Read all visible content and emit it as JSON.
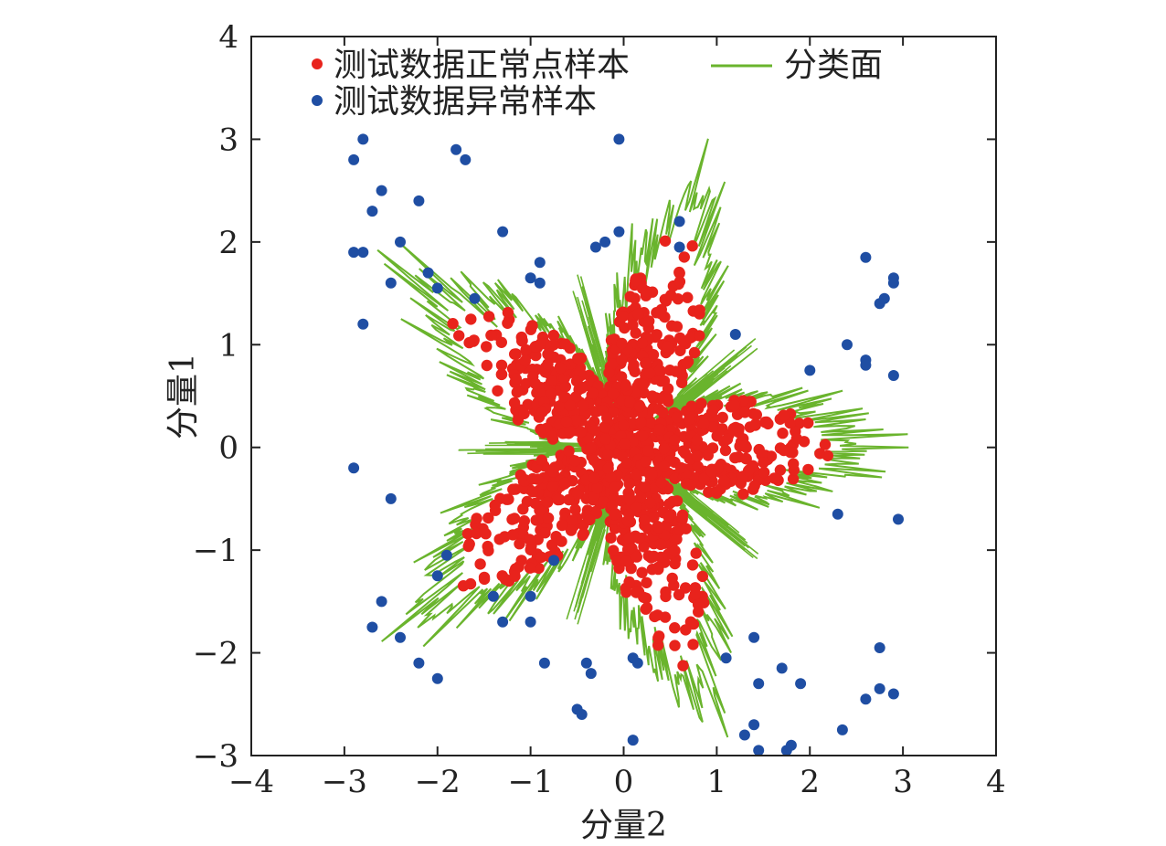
{
  "chart_data": {
    "type": "scatter",
    "xlabel": "分量2",
    "ylabel": "分量1",
    "xlim": [
      -4,
      4
    ],
    "ylim": [
      -3,
      4
    ],
    "x_ticks": [
      "−4",
      "−3",
      "−2",
      "−1",
      "0",
      "1",
      "2",
      "3",
      "4"
    ],
    "y_ticks": [
      "−3",
      "−2",
      "−1",
      "0",
      "1",
      "2",
      "3",
      "4"
    ],
    "grid": false,
    "legend_placement": "top-left",
    "legend": {
      "normal": "测试数据正常点样本",
      "anomaly": "测试数据异常样本",
      "boundary": "分类面"
    },
    "colors": {
      "normal": "#e8231c",
      "anomaly": "#1f4ea3",
      "boundary": "#6ab42d"
    },
    "boundary_shape": {
      "description": "five-lobed star-shaped decision boundary",
      "lobe_directions_deg": [
        -72,
        0,
        72,
        144,
        216
      ],
      "inner_radius": 0.4,
      "outer_radius": 2.5
    },
    "series": [
      {
        "name": "测试数据异常样本",
        "points": [
          [
            -2.8,
            3.0
          ],
          [
            -2.9,
            2.8
          ],
          [
            -1.8,
            2.9
          ],
          [
            -1.7,
            2.8
          ],
          [
            -0.05,
            3.0
          ],
          [
            -2.6,
            2.5
          ],
          [
            -2.2,
            2.4
          ],
          [
            -2.7,
            2.3
          ],
          [
            -1.3,
            2.1
          ],
          [
            -2.4,
            2.0
          ],
          [
            -2.9,
            1.9
          ],
          [
            -2.8,
            1.9
          ],
          [
            -0.3,
            1.95
          ],
          [
            -0.05,
            2.1
          ],
          [
            -0.2,
            2.0
          ],
          [
            0.6,
            2.2
          ],
          [
            0.6,
            1.95
          ],
          [
            -1.0,
            1.65
          ],
          [
            -0.9,
            1.6
          ],
          [
            -0.9,
            1.8
          ],
          [
            -2.5,
            1.6
          ],
          [
            -2.1,
            1.7
          ],
          [
            -2.0,
            1.55
          ],
          [
            -1.6,
            1.45
          ],
          [
            -2.8,
            1.2
          ],
          [
            2.6,
            1.85
          ],
          [
            2.9,
            1.65
          ],
          [
            2.9,
            1.6
          ],
          [
            2.8,
            1.45
          ],
          [
            2.75,
            1.4
          ],
          [
            1.2,
            1.1
          ],
          [
            2.4,
            1.0
          ],
          [
            2.6,
            0.85
          ],
          [
            2.6,
            0.8
          ],
          [
            2.0,
            0.75
          ],
          [
            2.9,
            0.7
          ],
          [
            -2.9,
            -0.2
          ],
          [
            -2.5,
            -0.5
          ],
          [
            2.3,
            -0.65
          ],
          [
            2.95,
            -0.7
          ],
          [
            -1.9,
            -1.05
          ],
          [
            -0.75,
            -1.1
          ],
          [
            -2.0,
            -1.25
          ],
          [
            -1.4,
            -1.45
          ],
          [
            -1.0,
            -1.45
          ],
          [
            -2.6,
            -1.5
          ],
          [
            -1.3,
            -1.7
          ],
          [
            -1.0,
            -1.7
          ],
          [
            -2.7,
            -1.75
          ],
          [
            -2.4,
            -1.85
          ],
          [
            1.4,
            -1.85
          ],
          [
            2.75,
            -1.95
          ],
          [
            -0.4,
            -2.1
          ],
          [
            0.1,
            -2.05
          ],
          [
            0.15,
            -2.1
          ],
          [
            1.1,
            -2.05
          ],
          [
            -2.2,
            -2.1
          ],
          [
            -0.35,
            -2.2
          ],
          [
            -0.85,
            -2.1
          ],
          [
            1.7,
            -2.15
          ],
          [
            -2.0,
            -2.25
          ],
          [
            1.45,
            -2.3
          ],
          [
            1.9,
            -2.3
          ],
          [
            2.75,
            -2.35
          ],
          [
            2.9,
            -2.4
          ],
          [
            -0.5,
            -2.55
          ],
          [
            -0.45,
            -2.6
          ],
          [
            2.6,
            -2.45
          ],
          [
            1.4,
            -2.7
          ],
          [
            2.35,
            -2.75
          ],
          [
            1.3,
            -2.8
          ],
          [
            0.1,
            -2.85
          ],
          [
            1.45,
            -2.95
          ],
          [
            1.8,
            -2.9
          ],
          [
            1.75,
            -2.95
          ]
        ]
      }
    ]
  }
}
